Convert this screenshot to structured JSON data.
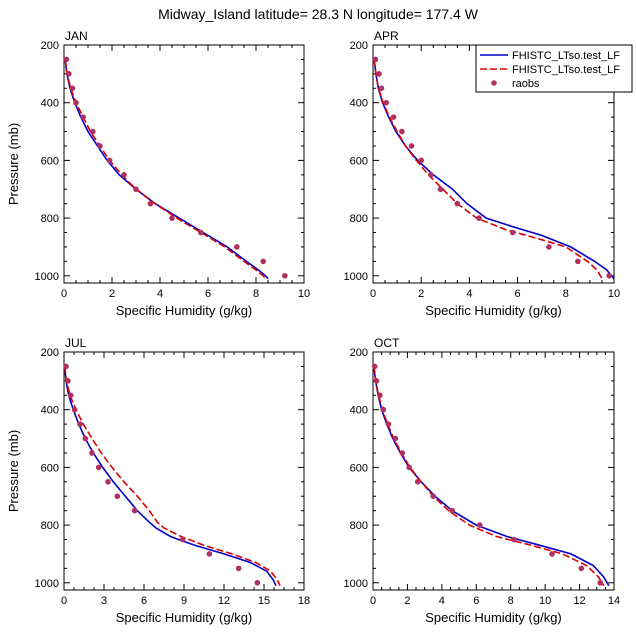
{
  "figure": {
    "title": "Midway_Island  latitude= 28.3 N longitude= 177.4 W"
  },
  "legend": {
    "placement": "top-right",
    "entries": [
      {
        "label": "FHISTC_LTso.test_LF",
        "style": "solid",
        "color": "#0000cc"
      },
      {
        "label": "FHISTC_LTso.test_LF",
        "style": "dashed",
        "color": "#dd0000"
      },
      {
        "label": "raobs",
        "style": "marker",
        "color": "#b03060"
      }
    ]
  },
  "chart_data": [
    {
      "type": "line",
      "title": "JAN",
      "xlabel": "Specific Humidity (g/kg)",
      "ylabel": "Pressure (mb)",
      "xlim": [
        0,
        10
      ],
      "ylim": [
        1025,
        200
      ],
      "xticks": [
        0,
        2,
        4,
        6,
        8,
        10
      ],
      "yticks": [
        200,
        400,
        600,
        800,
        1000
      ],
      "series": [
        {
          "name": "FHISTC_LTso.test_LF",
          "style": "solid",
          "color": "#0000cc",
          "x": [
            0.05,
            0.12,
            0.25,
            0.45,
            0.7,
            1.0,
            1.4,
            1.8,
            2.3,
            3.0,
            3.8,
            4.8,
            5.8,
            6.8,
            7.6,
            8.1,
            8.4,
            8.5
          ],
          "y": [
            250,
            300,
            350,
            400,
            450,
            500,
            550,
            600,
            650,
            700,
            750,
            800,
            850,
            900,
            950,
            980,
            1000,
            1010
          ]
        },
        {
          "name": "FHISTC_LTso.test_LF",
          "style": "dashed",
          "color": "#dd0000",
          "x": [
            0.05,
            0.13,
            0.28,
            0.5,
            0.8,
            1.1,
            1.5,
            1.9,
            2.4,
            3.0,
            3.8,
            4.7,
            5.7,
            6.7,
            7.5,
            8.0,
            8.3,
            8.4
          ],
          "y": [
            250,
            300,
            350,
            400,
            450,
            500,
            550,
            600,
            650,
            700,
            750,
            800,
            850,
            900,
            950,
            980,
            1000,
            1010
          ]
        },
        {
          "name": "raobs",
          "style": "marker",
          "color": "#b03060",
          "x": [
            0.1,
            0.2,
            0.35,
            0.5,
            0.8,
            1.2,
            1.5,
            1.9,
            2.5,
            3.0,
            3.6,
            4.5,
            5.7,
            7.2,
            8.3,
            9.2
          ],
          "y": [
            250,
            300,
            350,
            400,
            450,
            500,
            550,
            600,
            650,
            700,
            750,
            800,
            850,
            900,
            950,
            1000
          ]
        }
      ]
    },
    {
      "type": "line",
      "title": "APR",
      "xlabel": "Specific Humidity (g/kg)",
      "ylabel": "",
      "xlim": [
        0,
        10
      ],
      "ylim": [
        1025,
        200
      ],
      "xticks": [
        0,
        2,
        4,
        6,
        8,
        10
      ],
      "yticks": [
        200,
        400,
        600,
        800,
        1000
      ],
      "series": [
        {
          "name": "FHISTC_LTso.test_LF",
          "style": "solid",
          "color": "#0000cc",
          "x": [
            0.05,
            0.12,
            0.22,
            0.4,
            0.65,
            0.95,
            1.35,
            1.85,
            2.5,
            3.3,
            3.9,
            4.7,
            5.8,
            7.0,
            8.2,
            9.2,
            9.7,
            10.0
          ],
          "y": [
            250,
            300,
            350,
            400,
            450,
            500,
            550,
            600,
            650,
            700,
            750,
            800,
            830,
            860,
            900,
            950,
            980,
            1010
          ]
        },
        {
          "name": "FHISTC_LTso.test_LF",
          "style": "dashed",
          "color": "#dd0000",
          "x": [
            0.05,
            0.12,
            0.23,
            0.42,
            0.68,
            1.0,
            1.35,
            1.8,
            2.3,
            2.9,
            3.5,
            4.3,
            5.5,
            6.8,
            8.0,
            8.9,
            9.3,
            9.5
          ],
          "y": [
            250,
            300,
            350,
            400,
            450,
            500,
            550,
            600,
            650,
            700,
            750,
            800,
            840,
            870,
            900,
            950,
            980,
            1010
          ]
        },
        {
          "name": "raobs",
          "style": "marker",
          "color": "#b03060",
          "x": [
            0.1,
            0.25,
            0.35,
            0.55,
            0.85,
            1.2,
            1.6,
            2.0,
            2.4,
            2.8,
            3.5,
            4.4,
            5.8,
            7.3,
            8.5,
            9.8
          ],
          "y": [
            250,
            300,
            350,
            400,
            450,
            500,
            550,
            600,
            650,
            700,
            750,
            800,
            850,
            900,
            950,
            1000
          ]
        }
      ]
    },
    {
      "type": "line",
      "title": "JUL",
      "xlabel": "Specific Humidity (g/kg)",
      "ylabel": "Pressure (mb)",
      "xlim": [
        0,
        18
      ],
      "ylim": [
        1025,
        200
      ],
      "xticks": [
        0,
        3,
        6,
        9,
        12,
        15,
        18
      ],
      "yticks": [
        200,
        400,
        600,
        800,
        1000
      ],
      "series": [
        {
          "name": "FHISTC_LTso.test_LF",
          "style": "solid",
          "color": "#0000cc",
          "x": [
            0.05,
            0.15,
            0.35,
            0.7,
            1.1,
            1.6,
            2.2,
            2.9,
            3.7,
            4.6,
            5.5,
            6.4,
            6.9,
            8.0,
            9.8,
            12.0,
            14.0,
            15.2,
            15.7,
            15.9
          ],
          "y": [
            250,
            300,
            350,
            400,
            450,
            500,
            550,
            600,
            650,
            700,
            750,
            790,
            810,
            840,
            870,
            900,
            930,
            960,
            990,
            1010
          ]
        },
        {
          "name": "FHISTC_LTso.test_LF",
          "style": "dashed",
          "color": "#dd0000",
          "x": [
            0.05,
            0.18,
            0.45,
            0.9,
            1.45,
            2.1,
            2.8,
            3.6,
            4.5,
            5.5,
            6.4,
            7.0,
            7.5,
            8.8,
            10.5,
            12.6,
            14.4,
            15.5,
            16.0,
            16.2
          ],
          "y": [
            250,
            300,
            350,
            400,
            450,
            500,
            550,
            600,
            650,
            700,
            750,
            790,
            810,
            840,
            870,
            900,
            930,
            960,
            990,
            1010
          ]
        },
        {
          "name": "raobs",
          "style": "marker",
          "color": "#b03060",
          "x": [
            0.15,
            0.3,
            0.5,
            0.8,
            1.2,
            1.6,
            2.1,
            2.6,
            3.3,
            4.0,
            5.3,
            8.9,
            10.9,
            13.1,
            14.5
          ],
          "y": [
            250,
            300,
            350,
            400,
            450,
            500,
            550,
            600,
            650,
            700,
            750,
            850,
            900,
            950,
            1000
          ]
        }
      ]
    },
    {
      "type": "line",
      "title": "OCT",
      "xlabel": "Specific Humidity (g/kg)",
      "ylabel": "",
      "xlim": [
        0,
        14
      ],
      "ylim": [
        1025,
        200
      ],
      "xticks": [
        0,
        2,
        4,
        6,
        8,
        10,
        12,
        14
      ],
      "yticks": [
        200,
        400,
        600,
        800,
        1000
      ],
      "series": [
        {
          "name": "FHISTC_LTso.test_LF",
          "style": "solid",
          "color": "#0000cc",
          "x": [
            0.05,
            0.15,
            0.3,
            0.5,
            0.8,
            1.15,
            1.6,
            2.1,
            2.8,
            3.6,
            4.6,
            6.0,
            7.8,
            9.7,
            11.5,
            12.8,
            13.4,
            13.7
          ],
          "y": [
            250,
            300,
            350,
            400,
            450,
            500,
            550,
            600,
            650,
            700,
            750,
            800,
            840,
            870,
            900,
            940,
            980,
            1010
          ]
        },
        {
          "name": "FHISTC_LTso.test_LF",
          "style": "dashed",
          "color": "#dd0000",
          "x": [
            0.05,
            0.15,
            0.32,
            0.55,
            0.85,
            1.2,
            1.65,
            2.15,
            2.8,
            3.5,
            4.4,
            5.6,
            7.2,
            9.2,
            11.0,
            12.4,
            13.1,
            13.4
          ],
          "y": [
            250,
            300,
            350,
            400,
            450,
            500,
            550,
            600,
            650,
            700,
            750,
            800,
            840,
            870,
            900,
            940,
            980,
            1010
          ]
        },
        {
          "name": "raobs",
          "style": "marker",
          "color": "#b03060",
          "x": [
            0.1,
            0.2,
            0.4,
            0.6,
            0.9,
            1.3,
            1.7,
            2.1,
            2.6,
            3.5,
            4.6,
            6.2,
            8.2,
            10.4,
            12.1,
            13.2
          ],
          "y": [
            250,
            300,
            350,
            400,
            450,
            500,
            550,
            600,
            650,
            700,
            750,
            800,
            850,
            900,
            950,
            1000
          ]
        }
      ]
    }
  ]
}
